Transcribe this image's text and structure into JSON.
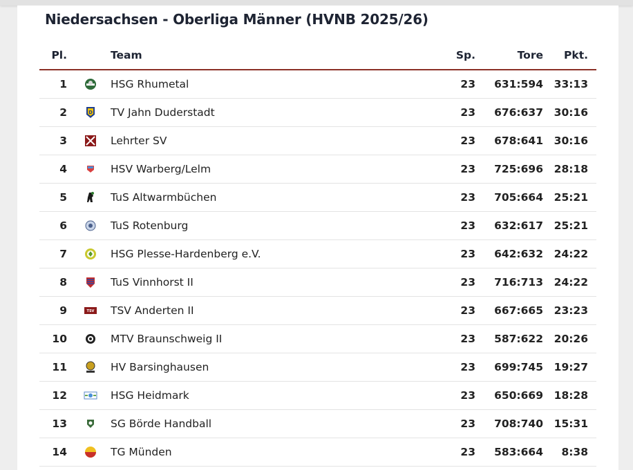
{
  "title": "Niedersachsen - Oberliga Männer (HVNB 2025/26)",
  "columns": {
    "pl": "Pl.",
    "team": "Team",
    "sp": "Sp.",
    "tore": "Tore",
    "pkt": "Pkt."
  },
  "colors": {
    "header_rule": "#8b2f25",
    "row_rule": "#e3e3e3"
  },
  "rows": [
    {
      "pl": "1",
      "team": "HSG Rhumetal",
      "sp": "23",
      "tore": "631:594",
      "pkt": "33:13",
      "logo": "hsg-rhumetal-logo-icon"
    },
    {
      "pl": "2",
      "team": "TV Jahn Duderstadt",
      "sp": "23",
      "tore": "676:637",
      "pkt": "30:16",
      "logo": "tv-jahn-duderstadt-logo-icon"
    },
    {
      "pl": "3",
      "team": "Lehrter SV",
      "sp": "23",
      "tore": "678:641",
      "pkt": "30:16",
      "logo": "lehrter-sv-logo-icon"
    },
    {
      "pl": "4",
      "team": "HSV Warberg/Lelm",
      "sp": "23",
      "tore": "725:696",
      "pkt": "28:18",
      "logo": "hsv-warberg-lelm-logo-icon"
    },
    {
      "pl": "5",
      "team": "TuS Altwarmbüchen",
      "sp": "23",
      "tore": "705:664",
      "pkt": "25:21",
      "logo": "tus-altwarmbuechen-logo-icon"
    },
    {
      "pl": "6",
      "team": "TuS Rotenburg",
      "sp": "23",
      "tore": "632:617",
      "pkt": "25:21",
      "logo": "tus-rotenburg-logo-icon"
    },
    {
      "pl": "7",
      "team": "HSG Plesse-Hardenberg e.V.",
      "sp": "23",
      "tore": "642:632",
      "pkt": "24:22",
      "logo": "hsg-plesse-hardenberg-logo-icon"
    },
    {
      "pl": "8",
      "team": "TuS Vinnhorst II",
      "sp": "23",
      "tore": "716:713",
      "pkt": "24:22",
      "logo": "tus-vinnhorst-logo-icon"
    },
    {
      "pl": "9",
      "team": "TSV Anderten II",
      "sp": "23",
      "tore": "667:665",
      "pkt": "23:23",
      "logo": "tsv-anderten-logo-icon"
    },
    {
      "pl": "10",
      "team": "MTV Braunschweig II",
      "sp": "23",
      "tore": "587:622",
      "pkt": "20:26",
      "logo": "mtv-braunschweig-logo-icon"
    },
    {
      "pl": "11",
      "team": "HV Barsinghausen",
      "sp": "23",
      "tore": "699:745",
      "pkt": "19:27",
      "logo": "hv-barsinghausen-logo-icon"
    },
    {
      "pl": "12",
      "team": "HSG Heidmark",
      "sp": "23",
      "tore": "650:669",
      "pkt": "18:28",
      "logo": "hsg-heidmark-logo-icon"
    },
    {
      "pl": "13",
      "team": "SG Börde Handball",
      "sp": "23",
      "tore": "708:740",
      "pkt": "15:31",
      "logo": "sg-boerde-handball-logo-icon"
    },
    {
      "pl": "14",
      "team": "TG Münden",
      "sp": "23",
      "tore": "583:664",
      "pkt": "8:38",
      "logo": "tg-muenden-logo-icon"
    }
  ]
}
